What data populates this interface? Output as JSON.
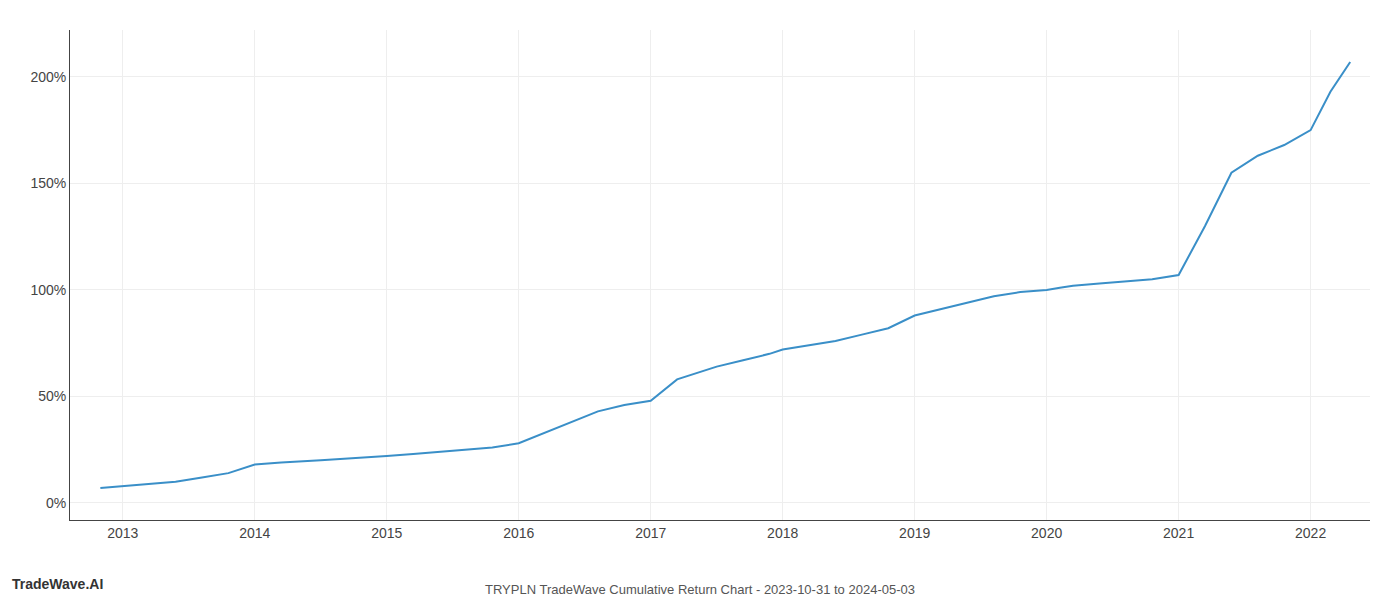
{
  "chart_data": {
    "type": "line",
    "title": "TRYPLN TradeWave Cumulative Return Chart - 2023-10-31 to 2024-05-03",
    "annotations": [
      "TradeWave.AI"
    ],
    "x": [
      2012.83,
      2013.0,
      2013.2,
      2013.4,
      2013.6,
      2013.8,
      2014.0,
      2014.2,
      2014.5,
      2014.8,
      2015.0,
      2015.2,
      2015.4,
      2015.6,
      2015.8,
      2016.0,
      2016.2,
      2016.4,
      2016.6,
      2016.8,
      2017.0,
      2017.2,
      2017.5,
      2017.7,
      2017.9,
      2018.0,
      2018.2,
      2018.4,
      2018.6,
      2018.8,
      2019.0,
      2019.2,
      2019.4,
      2019.6,
      2019.8,
      2020.0,
      2020.1,
      2020.2,
      2020.4,
      2020.6,
      2020.8,
      2021.0,
      2021.2,
      2021.4,
      2021.6,
      2021.8,
      2022.0,
      2022.15,
      2022.3
    ],
    "values": [
      7,
      8,
      9,
      10,
      12,
      14,
      18,
      19,
      20,
      21,
      22,
      23,
      24,
      25,
      26,
      28,
      33,
      38,
      43,
      46,
      48,
      58,
      64,
      67,
      70,
      72,
      74,
      76,
      79,
      82,
      88,
      91,
      94,
      97,
      99,
      100,
      101,
      102,
      103,
      104,
      105,
      107,
      130,
      155,
      163,
      168,
      175,
      193,
      207
    ],
    "color": "#3a8fc8",
    "xlim": [
      2012.6,
      2022.45
    ],
    "xticks": [
      2013,
      2014,
      2015,
      2016,
      2017,
      2018,
      2019,
      2020,
      2021,
      2022
    ],
    "ylim": [
      -8,
      222
    ],
    "yticks": [
      {
        "value": 0,
        "label": "0%"
      },
      {
        "value": 50,
        "label": "50%"
      },
      {
        "value": 100,
        "label": "100%"
      },
      {
        "value": 150,
        "label": "150%"
      },
      {
        "value": 200,
        "label": "200%"
      }
    ],
    "grid": true
  }
}
